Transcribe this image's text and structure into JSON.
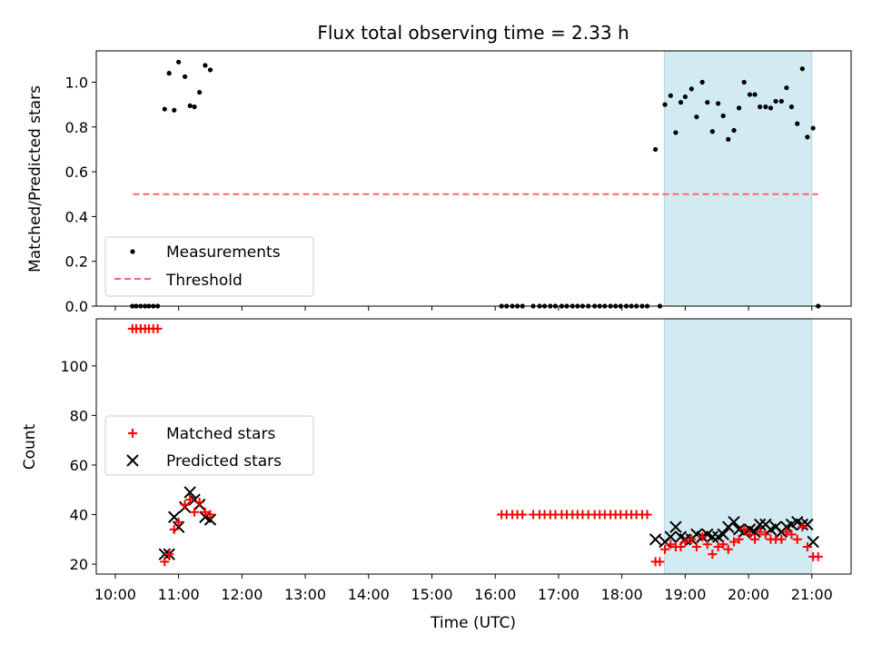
{
  "chart_data": [
    {
      "type": "scatter",
      "title": "Flux total observing time = 2.33 h",
      "ylabel": "Matched/Predicted stars",
      "ylim": [
        0,
        1.14
      ],
      "yticks": [
        "0.0",
        "0.2",
        "0.4",
        "0.6",
        "0.8",
        "1.0"
      ],
      "ytick_values": [
        0,
        0.2,
        0.4,
        0.6,
        0.8,
        1.0
      ],
      "legend_position": "lower-left",
      "highlight_span": {
        "start_h": 18.67,
        "end_h": 21.0,
        "color": "#add8e6"
      },
      "threshold": {
        "name": "Threshold",
        "value": 0.5,
        "x_start_h": 10.28,
        "x_end_h": 21.1,
        "color": "#ff6666"
      },
      "series": [
        {
          "name": "Measurements",
          "color": "#000000",
          "points": [
            [
              10.27,
              0
            ],
            [
              10.33,
              0
            ],
            [
              10.4,
              0
            ],
            [
              10.47,
              0
            ],
            [
              10.53,
              0
            ],
            [
              10.6,
              0
            ],
            [
              10.67,
              0
            ],
            [
              10.78,
              0.88
            ],
            [
              10.85,
              1.04
            ],
            [
              10.93,
              0.875
            ],
            [
              11.0,
              1.09
            ],
            [
              11.1,
              1.025
            ],
            [
              11.18,
              0.895
            ],
            [
              11.25,
              0.89
            ],
            [
              11.33,
              0.955
            ],
            [
              11.42,
              1.075
            ],
            [
              11.5,
              1.055
            ],
            [
              16.1,
              0
            ],
            [
              16.18,
              0
            ],
            [
              16.27,
              0
            ],
            [
              16.35,
              0
            ],
            [
              16.43,
              0
            ],
            [
              16.6,
              0
            ],
            [
              16.7,
              0
            ],
            [
              16.78,
              0
            ],
            [
              16.87,
              0
            ],
            [
              16.95,
              0
            ],
            [
              17.05,
              0
            ],
            [
              17.13,
              0
            ],
            [
              17.22,
              0
            ],
            [
              17.3,
              0
            ],
            [
              17.38,
              0
            ],
            [
              17.47,
              0
            ],
            [
              17.57,
              0
            ],
            [
              17.65,
              0
            ],
            [
              17.73,
              0
            ],
            [
              17.82,
              0
            ],
            [
              17.9,
              0
            ],
            [
              17.98,
              0
            ],
            [
              18.07,
              0
            ],
            [
              18.15,
              0
            ],
            [
              18.23,
              0
            ],
            [
              18.32,
              0
            ],
            [
              18.4,
              0
            ],
            [
              18.53,
              0.7
            ],
            [
              18.6,
              0
            ],
            [
              18.68,
              0.9
            ],
            [
              18.77,
              0.94
            ],
            [
              18.85,
              0.775
            ],
            [
              18.93,
              0.91
            ],
            [
              19.0,
              0.935
            ],
            [
              19.1,
              0.97
            ],
            [
              19.18,
              0.845
            ],
            [
              19.27,
              1.0
            ],
            [
              19.35,
              0.91
            ],
            [
              19.43,
              0.78
            ],
            [
              19.52,
              0.905
            ],
            [
              19.6,
              0.85
            ],
            [
              19.68,
              0.745
            ],
            [
              19.77,
              0.785
            ],
            [
              19.85,
              0.885
            ],
            [
              19.93,
              1.0
            ],
            [
              20.02,
              0.945
            ],
            [
              20.1,
              0.945
            ],
            [
              20.18,
              0.89
            ],
            [
              20.27,
              0.89
            ],
            [
              20.35,
              0.885
            ],
            [
              20.43,
              0.915
            ],
            [
              20.52,
              0.915
            ],
            [
              20.6,
              0.975
            ],
            [
              20.68,
              0.89
            ],
            [
              20.77,
              0.815
            ],
            [
              20.85,
              1.06
            ],
            [
              20.93,
              0.755
            ],
            [
              21.02,
              0.795
            ],
            [
              21.1,
              0
            ]
          ]
        }
      ]
    },
    {
      "type": "scatter",
      "xlabel": "Time (UTC)",
      "ylabel": "Count",
      "ylim": [
        16,
        119
      ],
      "yticks": [
        "20",
        "40",
        "60",
        "80",
        "100"
      ],
      "ytick_values": [
        20,
        40,
        60,
        80,
        100
      ],
      "xlim_h": [
        9.7,
        21.62
      ],
      "xticks": [
        "10:00",
        "11:00",
        "12:00",
        "13:00",
        "14:00",
        "15:00",
        "16:00",
        "17:00",
        "18:00",
        "19:00",
        "20:00",
        "21:00"
      ],
      "xtick_values_h": [
        10,
        11,
        12,
        13,
        14,
        15,
        16,
        17,
        18,
        19,
        20,
        21
      ],
      "legend_position": "center-left",
      "highlight_span": {
        "start_h": 18.67,
        "end_h": 21.0,
        "color": "#add8e6"
      },
      "series": [
        {
          "name": "Matched stars",
          "marker": "plus",
          "color": "#ff0000",
          "points": [
            [
              10.27,
              115
            ],
            [
              10.33,
              115
            ],
            [
              10.4,
              115
            ],
            [
              10.47,
              115
            ],
            [
              10.53,
              115
            ],
            [
              10.6,
              115
            ],
            [
              10.67,
              115
            ],
            [
              10.78,
              21
            ],
            [
              10.85,
              24
            ],
            [
              10.93,
              34
            ],
            [
              11.0,
              37
            ],
            [
              11.1,
              44
            ],
            [
              11.18,
              46
            ],
            [
              11.25,
              41
            ],
            [
              11.33,
              45
            ],
            [
              11.42,
              41
            ],
            [
              11.5,
              40
            ],
            [
              16.1,
              40
            ],
            [
              16.18,
              40
            ],
            [
              16.27,
              40
            ],
            [
              16.35,
              40
            ],
            [
              16.43,
              40
            ],
            [
              16.6,
              40
            ],
            [
              16.7,
              40
            ],
            [
              16.78,
              40
            ],
            [
              16.87,
              40
            ],
            [
              16.95,
              40
            ],
            [
              17.05,
              40
            ],
            [
              17.13,
              40
            ],
            [
              17.22,
              40
            ],
            [
              17.3,
              40
            ],
            [
              17.38,
              40
            ],
            [
              17.47,
              40
            ],
            [
              17.57,
              40
            ],
            [
              17.65,
              40
            ],
            [
              17.73,
              40
            ],
            [
              17.82,
              40
            ],
            [
              17.9,
              40
            ],
            [
              17.98,
              40
            ],
            [
              18.07,
              40
            ],
            [
              18.15,
              40
            ],
            [
              18.23,
              40
            ],
            [
              18.32,
              40
            ],
            [
              18.4,
              40
            ],
            [
              18.53,
              21
            ],
            [
              18.6,
              21
            ],
            [
              18.68,
              26
            ],
            [
              18.77,
              28
            ],
            [
              18.85,
              27
            ],
            [
              18.93,
              27
            ],
            [
              19.0,
              29
            ],
            [
              19.1,
              30
            ],
            [
              19.18,
              27
            ],
            [
              19.27,
              31
            ],
            [
              19.35,
              28
            ],
            [
              19.43,
              24
            ],
            [
              19.52,
              27
            ],
            [
              19.6,
              28
            ],
            [
              19.68,
              26
            ],
            [
              19.77,
              29
            ],
            [
              19.85,
              30
            ],
            [
              19.93,
              34
            ],
            [
              20.02,
              32
            ],
            [
              20.1,
              30
            ],
            [
              20.18,
              33
            ],
            [
              20.27,
              32
            ],
            [
              20.35,
              30
            ],
            [
              20.43,
              30
            ],
            [
              20.52,
              30
            ],
            [
              20.6,
              33
            ],
            [
              20.68,
              32
            ],
            [
              20.77,
              30
            ],
            [
              20.85,
              35
            ],
            [
              20.93,
              27
            ],
            [
              21.02,
              23
            ],
            [
              21.1,
              23
            ]
          ]
        },
        {
          "name": "Predicted stars",
          "marker": "x",
          "color": "#000000",
          "points": [
            [
              10.78,
              24
            ],
            [
              10.85,
              24
            ],
            [
              10.93,
              39
            ],
            [
              11.0,
              35
            ],
            [
              11.1,
              43
            ],
            [
              11.18,
              49
            ],
            [
              11.25,
              46
            ],
            [
              11.33,
              44
            ],
            [
              11.42,
              39
            ],
            [
              11.5,
              38
            ],
            [
              18.53,
              30
            ],
            [
              18.68,
              29
            ],
            [
              18.77,
              31
            ],
            [
              18.85,
              35
            ],
            [
              18.93,
              31
            ],
            [
              19.0,
              30
            ],
            [
              19.1,
              30
            ],
            [
              19.18,
              32
            ],
            [
              19.27,
              31
            ],
            [
              19.35,
              32
            ],
            [
              19.43,
              31
            ],
            [
              19.52,
              31
            ],
            [
              19.6,
              32
            ],
            [
              19.68,
              35
            ],
            [
              19.77,
              37
            ],
            [
              19.85,
              34
            ],
            [
              19.93,
              33
            ],
            [
              20.02,
              34
            ],
            [
              20.1,
              33
            ],
            [
              20.18,
              36
            ],
            [
              20.27,
              36
            ],
            [
              20.35,
              34
            ],
            [
              20.43,
              35
            ],
            [
              20.52,
              33
            ],
            [
              20.6,
              35
            ],
            [
              20.68,
              36
            ],
            [
              20.77,
              37
            ],
            [
              20.85,
              36
            ],
            [
              20.93,
              36
            ],
            [
              21.02,
              29
            ]
          ]
        }
      ]
    }
  ]
}
